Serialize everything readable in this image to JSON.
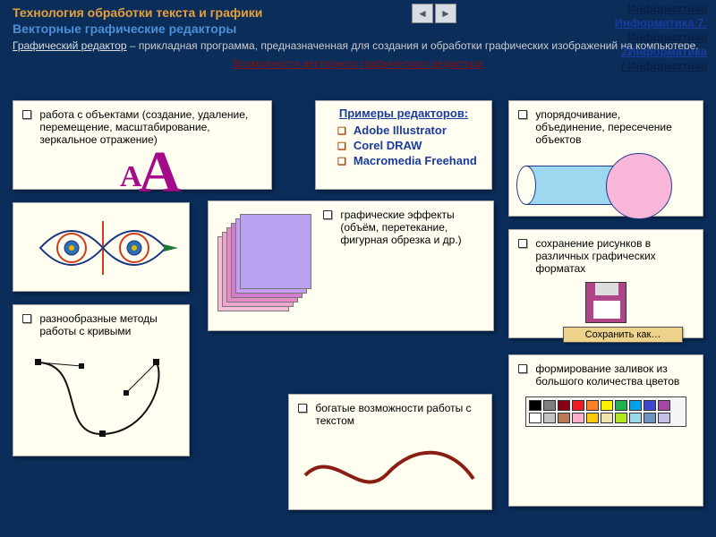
{
  "header": {
    "title1": "Технология обработки текста и графики",
    "title2": "Векторные графические редакторы",
    "intro_lead": "Графический редактор",
    "intro_rest": " – прикладная программа, предназначенная для создания и обработки графических изображений на компьютере.",
    "redline": "Возможности векторного графического редактора",
    "colors": {
      "bg": "#0a2d5a",
      "orange": "#e8a03a",
      "blue": "#4d8fd6"
    }
  },
  "rightnav": {
    "items": [
      "Информатика",
      "Информатика 7.",
      "Информатика",
      "2Информатика",
      "/ Информатика"
    ]
  },
  "cards": {
    "objects": {
      "text": "работа с объектами (создание, удаление, перемещение, масштабирование, зеркальное отражение)",
      "aa_color": "#a30b8b"
    },
    "editors": {
      "title": "Примеры редакторов:",
      "items": [
        "Adobe Illustrator",
        "Corel DRAW",
        "Macromedia Freehand"
      ]
    },
    "order": {
      "text": "упорядочивание, объединение, пересечение объектов",
      "venn": {
        "cylinder_color": "#9ed8f0",
        "circle_color": "#f8b6db",
        "stroke": "#223a8a"
      }
    },
    "effects": {
      "text": "графические эффекты (объём, перетекание, фигурная обрезка и др.)",
      "sheets": [
        "#f7bdd6",
        "#eda4cd",
        "#e58bc4",
        "#d37ad1",
        "#c79df2",
        "#b9a3f0"
      ]
    },
    "save": {
      "text": "сохранение рисунков в различных графических форматах",
      "button_label": "Сохранить как…",
      "floppy_color": "#b04488",
      "btn_bg": "#ecd28a"
    },
    "curves": {
      "text": "разнообразные методы работы с кривыми",
      "stroke": "#111111"
    },
    "text": {
      "text": "богатые возможности работы с текстом",
      "wave_color": "#8a1e12"
    },
    "fill": {
      "text": "формирование заливок из большого количества цветов",
      "palette": [
        [
          "#000000",
          "#7f7f7f",
          "#880015",
          "#ed1c24",
          "#ff7f27",
          "#fff200",
          "#22b14c",
          "#00a2e8",
          "#3f48cc",
          "#a349a4"
        ],
        [
          "#ffffff",
          "#c3c3c3",
          "#b97a57",
          "#ffaec9",
          "#ffc90e",
          "#efe4b0",
          "#b5e61d",
          "#99d9ea",
          "#7092be",
          "#c8bfe7"
        ]
      ]
    }
  },
  "eye": {
    "stroke": "#18357f",
    "accent1": "#d23b17",
    "accent2": "#e6b800",
    "mid": "#2f6fb0"
  }
}
